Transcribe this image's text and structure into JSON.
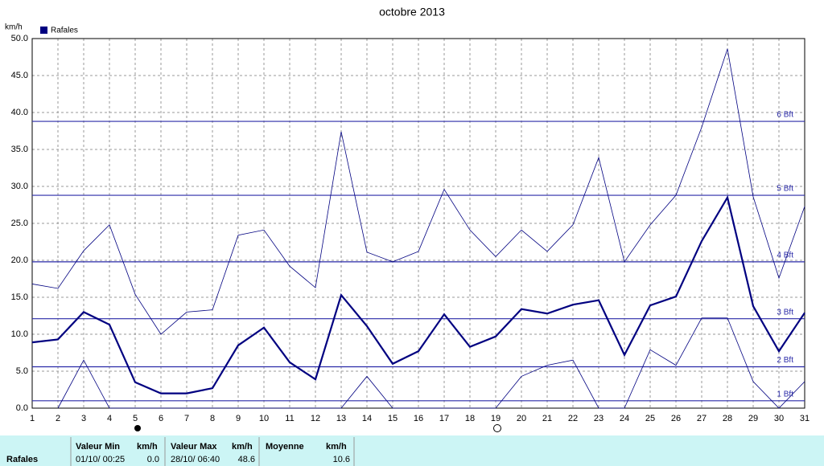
{
  "chart_data": {
    "type": "line",
    "title": "octobre 2013",
    "y_label": "km/h",
    "x": [
      1,
      2,
      3,
      4,
      5,
      6,
      7,
      8,
      9,
      10,
      11,
      12,
      13,
      14,
      15,
      16,
      17,
      18,
      19,
      20,
      21,
      22,
      23,
      24,
      25,
      26,
      27,
      28,
      29,
      30,
      31
    ],
    "xlim": [
      1,
      31
    ],
    "xticks": [
      1,
      2,
      3,
      4,
      5,
      6,
      7,
      8,
      9,
      10,
      11,
      12,
      13,
      14,
      15,
      16,
      17,
      18,
      19,
      20,
      21,
      22,
      23,
      24,
      25,
      26,
      27,
      28,
      29,
      30,
      31
    ],
    "ylim": [
      0,
      50
    ],
    "yticks": [
      {
        "value": 0,
        "label": "0.0"
      },
      {
        "value": 5,
        "label": "5.0"
      },
      {
        "value": 10,
        "label": "10.0"
      },
      {
        "value": 15,
        "label": "15.0"
      },
      {
        "value": 20,
        "label": "20.0"
      },
      {
        "value": 25,
        "label": "25.0"
      },
      {
        "value": 30,
        "label": "30.0"
      },
      {
        "value": 35,
        "label": "35.0"
      },
      {
        "value": 40,
        "label": "40.0"
      },
      {
        "value": 45,
        "label": "45.0"
      },
      {
        "value": 50,
        "label": "50.0"
      }
    ],
    "grid": true,
    "legend": "top-left",
    "series": [
      {
        "name": "Rafales",
        "color": "#000080",
        "width": 2.2,
        "values": [
          8.9,
          9.3,
          13.0,
          11.3,
          3.5,
          2.0,
          2.0,
          2.7,
          8.5,
          10.9,
          6.2,
          3.9,
          15.3,
          11.1,
          6.0,
          7.7,
          12.7,
          8.3,
          9.7,
          13.4,
          12.8,
          14.0,
          14.6,
          7.2,
          13.9,
          15.1,
          22.6,
          28.5,
          13.8,
          7.7,
          12.9
        ]
      },
      {
        "color": "#000080",
        "width": 0.8,
        "values": [
          16.8,
          16.2,
          21.3,
          24.8,
          15.4,
          10.0,
          13.0,
          13.3,
          23.4,
          24.1,
          19.2,
          16.3,
          37.4,
          21.1,
          19.8,
          21.2,
          29.6,
          24.1,
          20.5,
          24.1,
          21.2,
          24.8,
          33.9,
          19.8,
          24.8,
          28.8,
          38.0,
          48.6,
          28.6,
          17.6,
          27.3
        ]
      },
      {
        "color": "#000080",
        "width": 0.8,
        "values": [
          null,
          0,
          6.5,
          0,
          0,
          0,
          0,
          0,
          0,
          0,
          0,
          0,
          0,
          4.3,
          0,
          0,
          0,
          0,
          0,
          4.3,
          5.8,
          6.5,
          0,
          0,
          7.9,
          5.8,
          12.2,
          12.2,
          3.6,
          0,
          3.6
        ]
      }
    ],
    "reference_lines": [
      {
        "value": 1,
        "label": "1 Bft"
      },
      {
        "value": 5.6,
        "label": "2 Bft"
      },
      {
        "value": 12.1,
        "label": "3 Bft"
      },
      {
        "value": 19.8,
        "label": "4 Bft"
      },
      {
        "value": 28.8,
        "label": "5 Bft"
      },
      {
        "value": 38.8,
        "label": "6 Bft"
      }
    ],
    "reference_color": "#2a2aa8"
  },
  "table": {
    "row_label": "Rafales",
    "groups": [
      {
        "header": "Valeur Min",
        "unit": "km/h",
        "date": "01/10/ 00:25",
        "value": "0.0"
      },
      {
        "header": "Valeur Max",
        "unit": "km/h",
        "date": "28/10/ 06:40",
        "value": "48.6"
      },
      {
        "header": "Moyenne",
        "unit": "km/h",
        "value": "10.6"
      }
    ]
  }
}
